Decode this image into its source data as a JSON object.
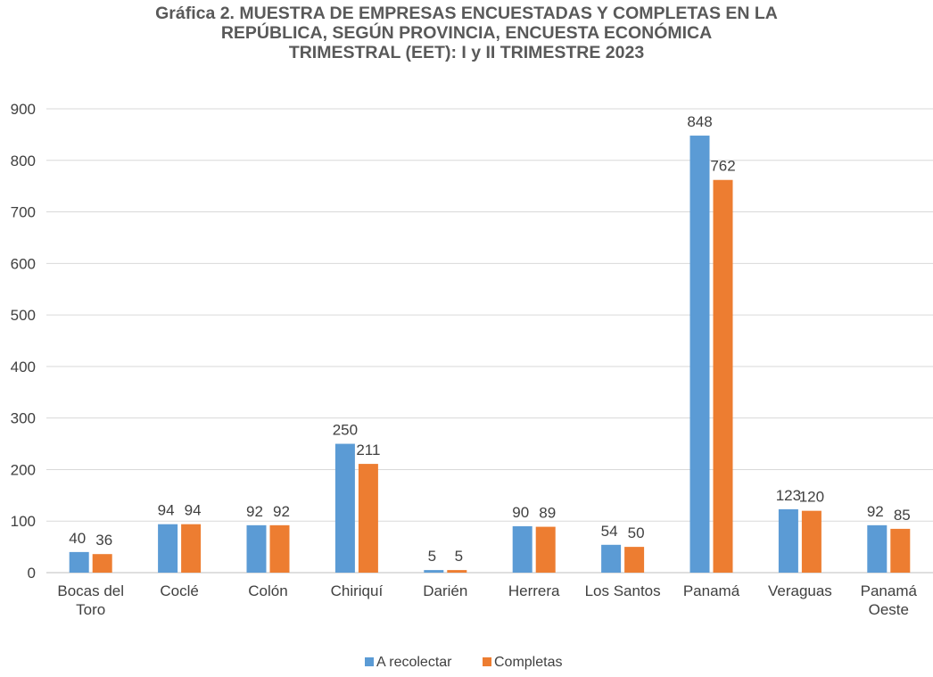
{
  "chart_data": {
    "type": "bar",
    "title_lines": [
      "Gráfica 2.  MUESTRA DE EMPRESAS ENCUESTADAS Y COMPLETAS EN LA",
      "REPÚBLICA, SEGÚN PROVINCIA, ENCUESTA ECONÓMICA",
      "TRIMESTRAL (EET): I y II  TRIMESTRE 2023"
    ],
    "categories": [
      [
        "Bocas del",
        "Toro"
      ],
      [
        "Coclé"
      ],
      [
        "Colón"
      ],
      [
        "Chiriquí"
      ],
      [
        "Darién"
      ],
      [
        "Herrera"
      ],
      [
        "Los Santos"
      ],
      [
        "Panamá"
      ],
      [
        "Veraguas"
      ],
      [
        "Panamá",
        "Oeste"
      ]
    ],
    "series": [
      {
        "name": "A recolectar",
        "color": "#5B9BD5",
        "values": [
          40,
          94,
          92,
          250,
          5,
          90,
          54,
          848,
          123,
          92
        ]
      },
      {
        "name": "Completas",
        "color": "#ED7D31",
        "values": [
          36,
          94,
          92,
          211,
          5,
          89,
          50,
          762,
          120,
          85
        ]
      }
    ],
    "ylim": [
      0,
      900
    ],
    "yticks": [
      0,
      100,
      200,
      300,
      400,
      500,
      600,
      700,
      800,
      900
    ],
    "grid": true,
    "legend_position": "bottom",
    "data_labels": true
  }
}
